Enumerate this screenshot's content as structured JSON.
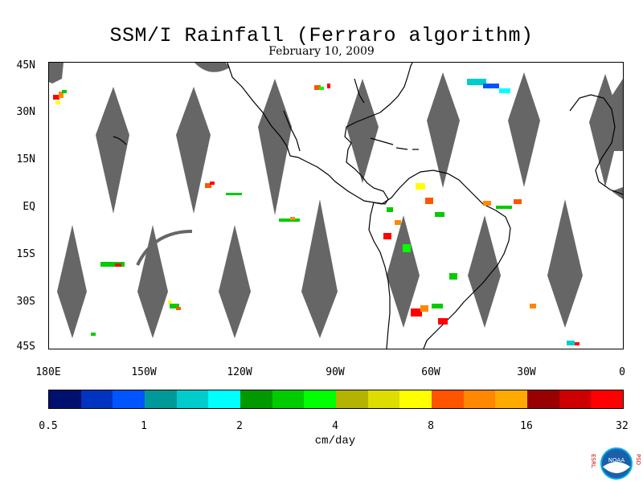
{
  "title": "SSM/I Rainfall (Ferraro algorithm)",
  "date": "February 10, 2009",
  "lat_ticks": [
    "45N",
    "30N",
    "15N",
    "EQ",
    "15S",
    "30S",
    "45S"
  ],
  "lon_ticks": [
    "180E",
    "150W",
    "120W",
    "90W",
    "60W",
    "30W",
    "0"
  ],
  "colorbar": {
    "colors": [
      "#00106e",
      "#0033c0",
      "#0055ff",
      "#009999",
      "#00cccc",
      "#00ffff",
      "#009900",
      "#00cc00",
      "#00ff00",
      "#b3b300",
      "#dddd00",
      "#ffff00",
      "#ff5500",
      "#ff8800",
      "#ffaa00",
      "#990000",
      "#cc0000",
      "#ff0000"
    ],
    "tick_labels": [
      "0.5",
      "1",
      "2",
      "4",
      "8",
      "16",
      "32"
    ],
    "units": "cm/day"
  },
  "logo": {
    "left_text": "ESRL",
    "right_text": "PSD",
    "center_text": "NOAA"
  }
}
